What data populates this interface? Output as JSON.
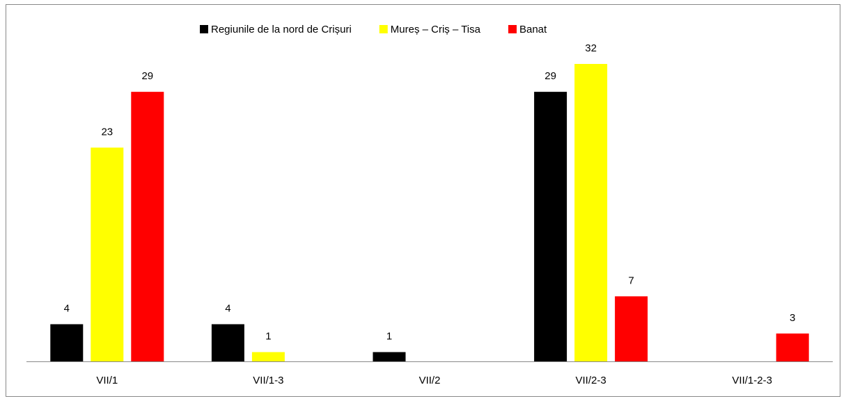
{
  "chart_data": {
    "type": "bar",
    "categories": [
      "VII/1",
      "VII/1-3",
      "VII/2",
      "VII/2-3",
      "VII/1-2-3"
    ],
    "series": [
      {
        "name": "Regiunile de la nord de Crișuri",
        "color": "#000000",
        "values": [
          4,
          4,
          1,
          29,
          null
        ]
      },
      {
        "name": "Mureș – Criș – Tisa",
        "color": "#ffff00",
        "values": [
          23,
          1,
          null,
          32,
          null
        ]
      },
      {
        "name": "Banat",
        "color": "#ff0000",
        "values": [
          29,
          null,
          null,
          7,
          3
        ]
      }
    ],
    "legend": "top"
  }
}
